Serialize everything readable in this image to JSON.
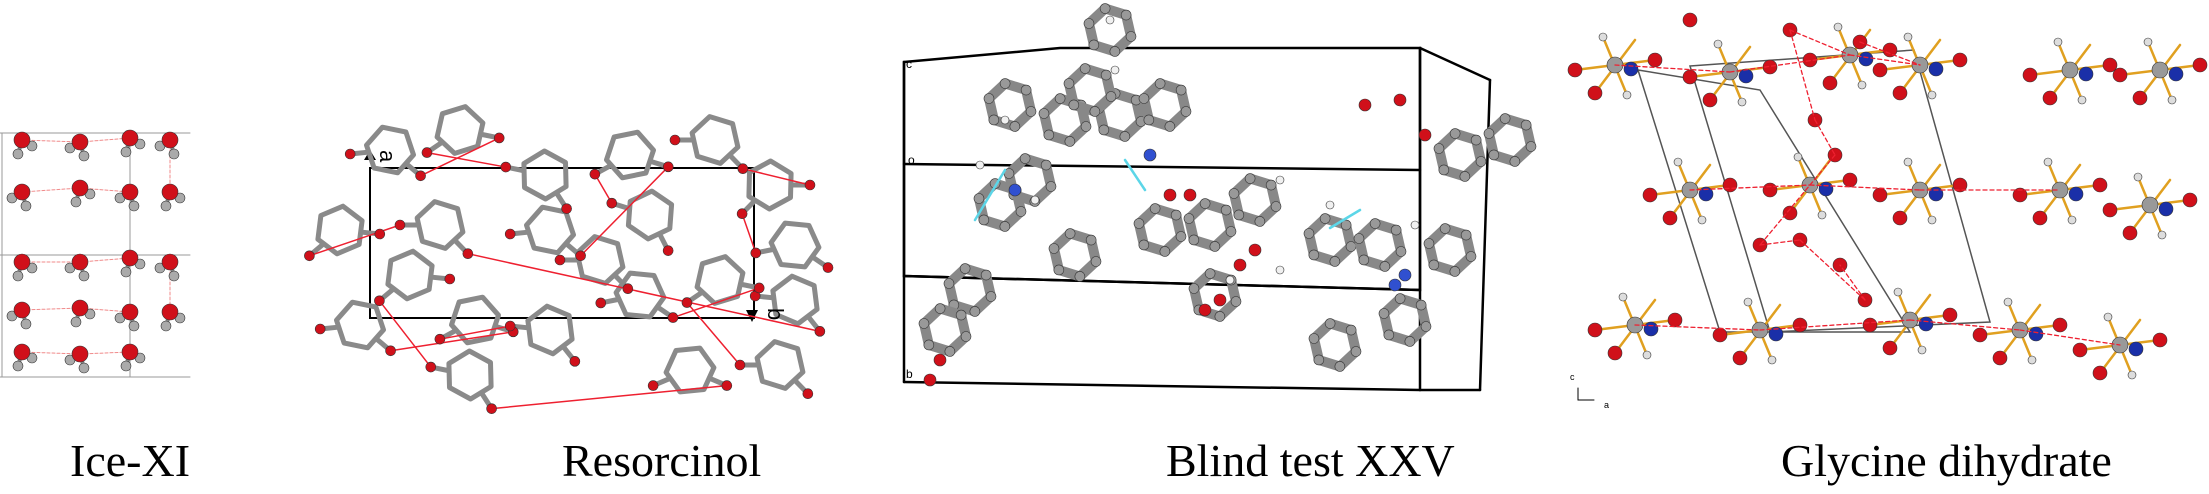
{
  "panels": [
    {
      "id": "ice",
      "caption": "Ice-XI"
    },
    {
      "id": "resorcinol",
      "caption": "Resorcinol",
      "axis_labels": [
        "a",
        "b"
      ]
    },
    {
      "id": "blind",
      "caption": "Blind test XXV",
      "corner_labels": [
        "c",
        "o",
        "b"
      ]
    },
    {
      "id": "glycine",
      "caption": "Glycine dihydrate",
      "axis_labels": [
        "c",
        "a"
      ]
    }
  ],
  "colors": {
    "oxygen": "#d0101a",
    "carbon": "#8a8a8a",
    "hydrogen": "#e8e8e8",
    "nitrogen": "#1a2fa8",
    "bond_yellow": "#e0a020",
    "hbond": "#ee2030",
    "hbond_cyan": "#5cd6e8",
    "cell": "#000000"
  }
}
